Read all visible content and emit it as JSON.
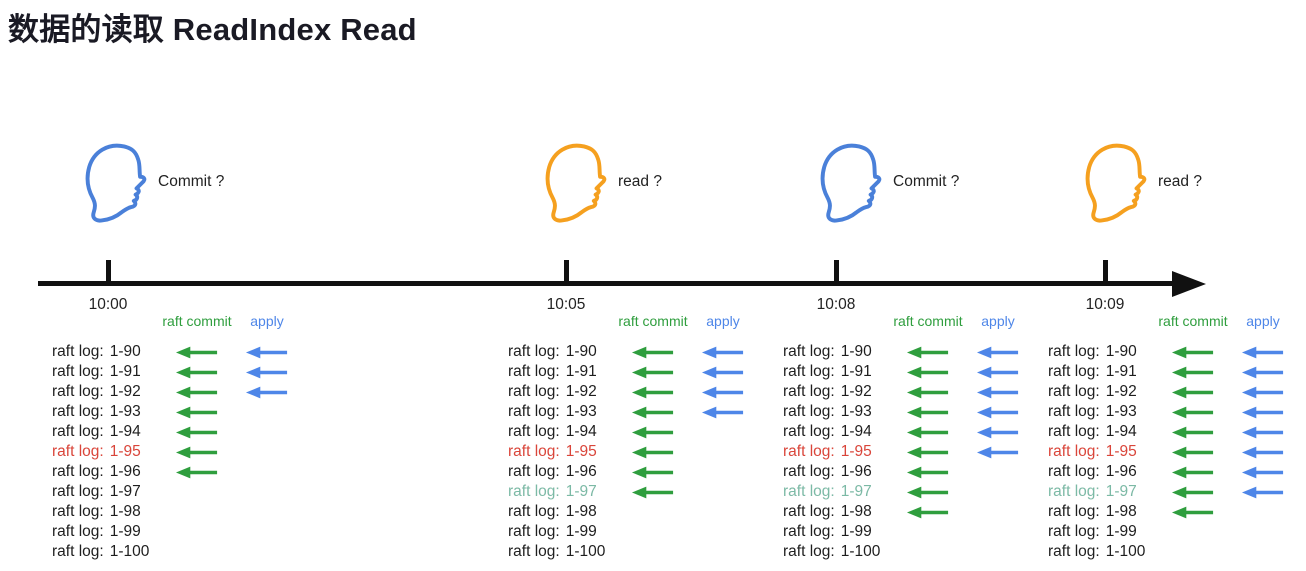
{
  "title": "数据的读取 ReadIndex Read",
  "colors": {
    "title": "#1a1a24",
    "text": "#1e1e1e",
    "line": "#111111",
    "green": "#2f9e3e",
    "blue": "#4e86e8",
    "red": "#d9453a",
    "teal": "#7cb9a5",
    "head_blue": "#4a80d9",
    "head_orange": "#f5a01f"
  },
  "column_headers": {
    "commit": "raft commit",
    "apply": "apply"
  },
  "log_label_prefix": "raft log:",
  "actors": [
    {
      "time": "10:00",
      "question": "Commit ?",
      "head_color": "blue"
    },
    {
      "time": "10:05",
      "question": "read ?",
      "head_color": "orange"
    },
    {
      "time": "10:08",
      "question": "Commit ?",
      "head_color": "blue"
    },
    {
      "time": "10:09",
      "question": "read ?",
      "head_color": "orange"
    }
  ],
  "columns": [
    {
      "time": "10:00",
      "entries": [
        {
          "id": "1-90",
          "color": "black",
          "commit": true,
          "apply": true
        },
        {
          "id": "1-91",
          "color": "black",
          "commit": true,
          "apply": true
        },
        {
          "id": "1-92",
          "color": "black",
          "commit": true,
          "apply": true
        },
        {
          "id": "1-93",
          "color": "black",
          "commit": true,
          "apply": false
        },
        {
          "id": "1-94",
          "color": "black",
          "commit": true,
          "apply": false
        },
        {
          "id": "1-95",
          "color": "red",
          "commit": true,
          "apply": false
        },
        {
          "id": "1-96",
          "color": "black",
          "commit": true,
          "apply": false
        },
        {
          "id": "1-97",
          "color": "black",
          "commit": false,
          "apply": false
        },
        {
          "id": "1-98",
          "color": "black",
          "commit": false,
          "apply": false
        },
        {
          "id": "1-99",
          "color": "black",
          "commit": false,
          "apply": false
        },
        {
          "id": "1-100",
          "color": "black",
          "commit": false,
          "apply": false
        }
      ]
    },
    {
      "time": "10:05",
      "entries": [
        {
          "id": "1-90",
          "color": "black",
          "commit": true,
          "apply": true
        },
        {
          "id": "1-91",
          "color": "black",
          "commit": true,
          "apply": true
        },
        {
          "id": "1-92",
          "color": "black",
          "commit": true,
          "apply": true
        },
        {
          "id": "1-93",
          "color": "black",
          "commit": true,
          "apply": true
        },
        {
          "id": "1-94",
          "color": "black",
          "commit": true,
          "apply": false
        },
        {
          "id": "1-95",
          "color": "red",
          "commit": true,
          "apply": false
        },
        {
          "id": "1-96",
          "color": "black",
          "commit": true,
          "apply": false
        },
        {
          "id": "1-97",
          "color": "teal",
          "commit": true,
          "apply": false
        },
        {
          "id": "1-98",
          "color": "black",
          "commit": false,
          "apply": false
        },
        {
          "id": "1-99",
          "color": "black",
          "commit": false,
          "apply": false
        },
        {
          "id": "1-100",
          "color": "black",
          "commit": false,
          "apply": false
        }
      ]
    },
    {
      "time": "10:08",
      "entries": [
        {
          "id": "1-90",
          "color": "black",
          "commit": true,
          "apply": true
        },
        {
          "id": "1-91",
          "color": "black",
          "commit": true,
          "apply": true
        },
        {
          "id": "1-92",
          "color": "black",
          "commit": true,
          "apply": true
        },
        {
          "id": "1-93",
          "color": "black",
          "commit": true,
          "apply": true
        },
        {
          "id": "1-94",
          "color": "black",
          "commit": true,
          "apply": true
        },
        {
          "id": "1-95",
          "color": "red",
          "commit": true,
          "apply": true
        },
        {
          "id": "1-96",
          "color": "black",
          "commit": true,
          "apply": false
        },
        {
          "id": "1-97",
          "color": "teal",
          "commit": true,
          "apply": false
        },
        {
          "id": "1-98",
          "color": "black",
          "commit": true,
          "apply": false
        },
        {
          "id": "1-99",
          "color": "black",
          "commit": false,
          "apply": false
        },
        {
          "id": "1-100",
          "color": "black",
          "commit": false,
          "apply": false
        }
      ]
    },
    {
      "time": "10:09",
      "entries": [
        {
          "id": "1-90",
          "color": "black",
          "commit": true,
          "apply": true
        },
        {
          "id": "1-91",
          "color": "black",
          "commit": true,
          "apply": true
        },
        {
          "id": "1-92",
          "color": "black",
          "commit": true,
          "apply": true
        },
        {
          "id": "1-93",
          "color": "black",
          "commit": true,
          "apply": true
        },
        {
          "id": "1-94",
          "color": "black",
          "commit": true,
          "apply": true
        },
        {
          "id": "1-95",
          "color": "red",
          "commit": true,
          "apply": true
        },
        {
          "id": "1-96",
          "color": "black",
          "commit": true,
          "apply": true
        },
        {
          "id": "1-97",
          "color": "teal",
          "commit": true,
          "apply": true
        },
        {
          "id": "1-98",
          "color": "black",
          "commit": true,
          "apply": false
        },
        {
          "id": "1-99",
          "color": "black",
          "commit": false,
          "apply": false
        },
        {
          "id": "1-100",
          "color": "black",
          "commit": false,
          "apply": false
        }
      ]
    }
  ]
}
